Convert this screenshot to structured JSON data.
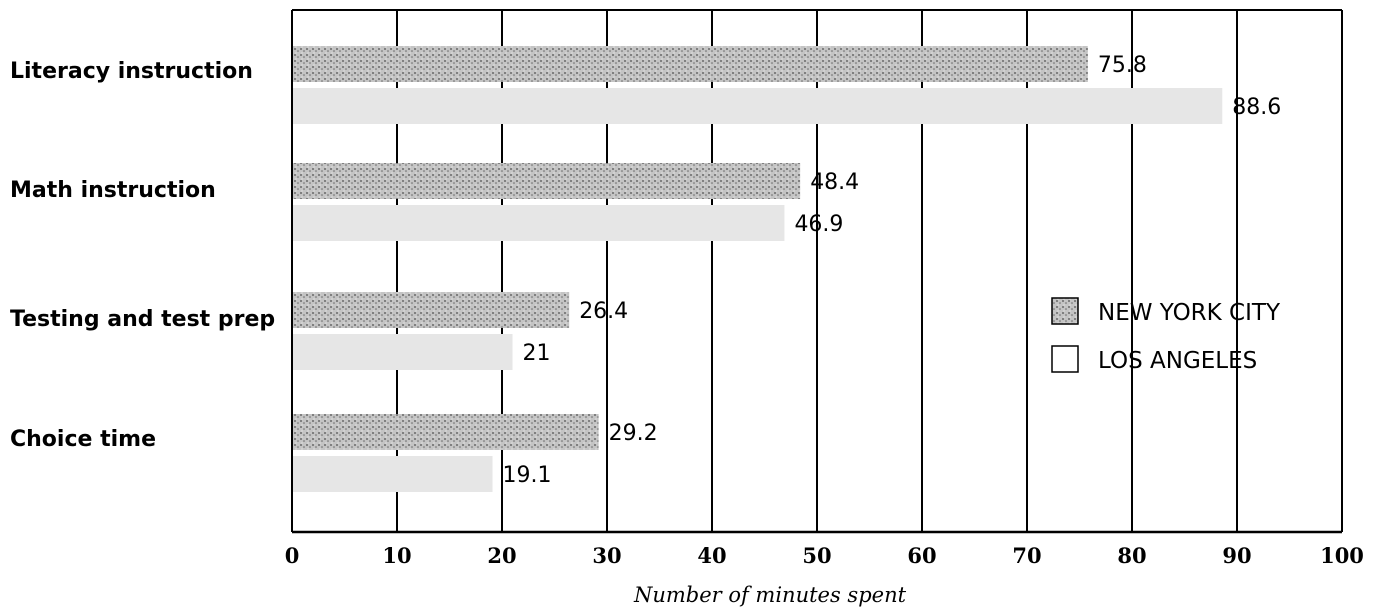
{
  "chart_data": {
    "type": "bar",
    "orientation": "horizontal",
    "categories": [
      "Literacy instruction",
      "Math instruction",
      "Testing and test prep",
      "Choice time"
    ],
    "series": [
      {
        "name": "NEW YORK CITY",
        "values": [
          75.8,
          48.4,
          26.4,
          29.2
        ],
        "color": "#8a8a8a"
      },
      {
        "name": "LOS ANGELES",
        "values": [
          88.6,
          46.9,
          21,
          19.1
        ],
        "color": "#e6e6e6"
      }
    ],
    "value_labels": [
      [
        "75.8",
        "48.4",
        "26.4",
        "29.2"
      ],
      [
        "88.6",
        "46.9",
        "21",
        "19.1"
      ]
    ],
    "xlabel": "Number of minutes spent",
    "xlim": [
      0,
      100
    ],
    "xticks": [
      0,
      10,
      20,
      30,
      40,
      50,
      60,
      70,
      80,
      90,
      100
    ],
    "grid": "vertical",
    "legend_position": "right"
  }
}
